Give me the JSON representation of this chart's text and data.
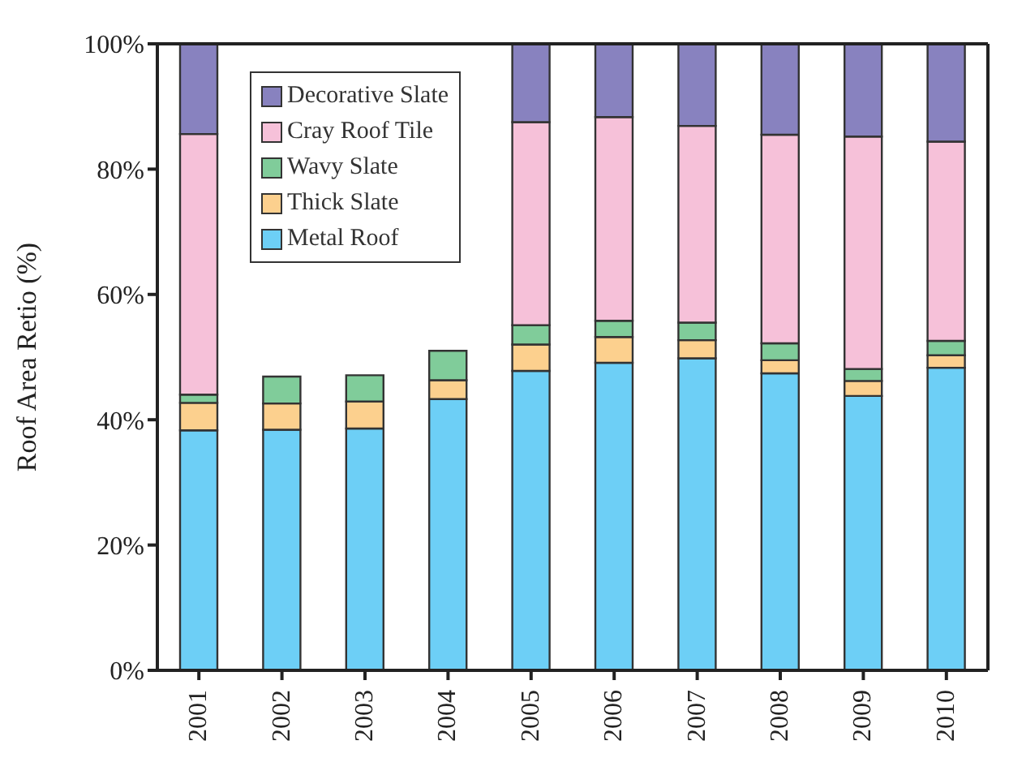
{
  "chart_data": {
    "type": "bar",
    "stacked": true,
    "ylabel": "Roof Area Retio (%)",
    "categories": [
      "2001",
      "2002",
      "2003",
      "2004",
      "2005",
      "2006",
      "2007",
      "2008",
      "2009",
      "2010"
    ],
    "series": [
      {
        "name": "Metal Roof",
        "color": "#6dcff6",
        "values": [
          38.3,
          38.4,
          38.6,
          43.3,
          47.8,
          49.1,
          49.8,
          47.4,
          43.8,
          48.3
        ]
      },
      {
        "name": "Thick Slate",
        "color": "#fcd08e",
        "values": [
          4.4,
          4.2,
          4.3,
          3.0,
          4.2,
          4.1,
          2.9,
          2.1,
          2.4,
          2.0
        ]
      },
      {
        "name": "Wavy Slate",
        "color": "#80cc9a",
        "values": [
          1.3,
          4.3,
          4.2,
          4.7,
          3.1,
          2.6,
          2.8,
          2.7,
          1.9,
          2.3
        ]
      },
      {
        "name": "Cray Roof Tile",
        "color": "#f6c1d9",
        "values": [
          41.6,
          null,
          null,
          null,
          32.4,
          32.5,
          31.4,
          33.3,
          37.1,
          31.8
        ]
      },
      {
        "name": "Decorative Slate",
        "color": "#8882bf",
        "values": [
          14.4,
          null,
          null,
          null,
          12.5,
          11.7,
          13.1,
          14.5,
          14.8,
          15.6
        ]
      }
    ],
    "ylim": [
      0,
      100
    ],
    "yticks": [
      {
        "value": 0,
        "label": "0%"
      },
      {
        "value": 20,
        "label": "20%"
      },
      {
        "value": 40,
        "label": "40%"
      },
      {
        "value": 60,
        "label": "60%"
      },
      {
        "value": 80,
        "label": "80%"
      },
      {
        "value": 100,
        "label": "100%"
      }
    ],
    "legend": "top left",
    "grid": false
  }
}
